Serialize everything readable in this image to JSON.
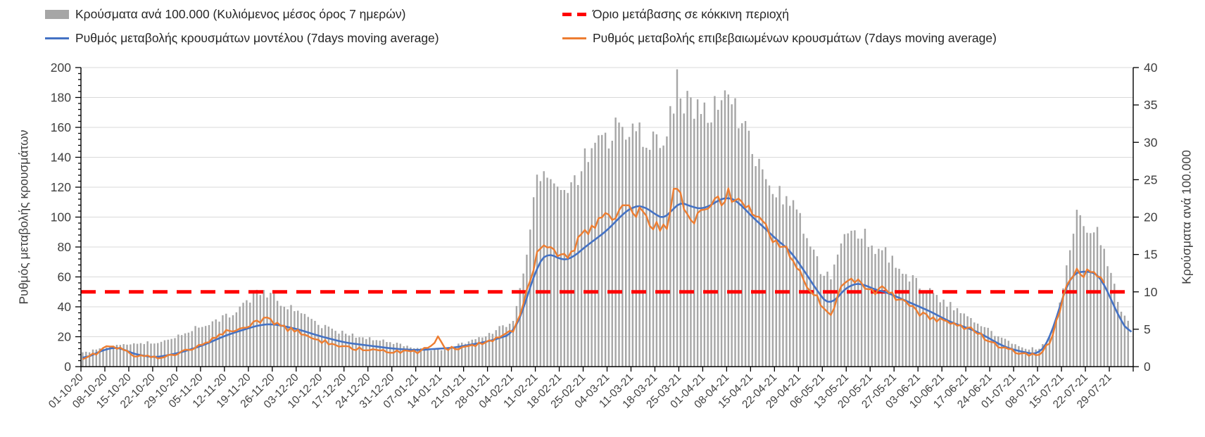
{
  "legend": {
    "items": [
      {
        "label": "Κρούσματα ανά 100.000 (Κυλιόμενος μέσος όρος 7 ημερών)",
        "style": "bar",
        "color": "#a6a6a6"
      },
      {
        "label": "Ρυθμός μεταβολής κρουσμάτων μοντέλου (7days moving average)",
        "style": "line",
        "color": "#4472c4"
      },
      {
        "label": "Όριο μετάβασης σε κόκκινη περιοχή",
        "style": "dash",
        "color": "#ff0000"
      },
      {
        "label": "Ρυθμός μεταβολής επιβεβαιωμένων κρουσμάτων (7days moving average)",
        "style": "line",
        "color": "#ed7d31"
      }
    ]
  },
  "axes": {
    "y_left": {
      "title": "Ρυθμός μεταβολής κρουσμάτων",
      "min": 0,
      "max": 200,
      "tick_step": 20,
      "ticks": [
        0,
        20,
        40,
        60,
        80,
        100,
        120,
        140,
        160,
        180,
        200
      ]
    },
    "y_right": {
      "title": "Κρούσματα ανά 100.000",
      "min": 0,
      "max": 40,
      "tick_step": 5,
      "ticks": [
        0,
        5,
        10,
        15,
        20,
        25,
        30,
        35,
        40
      ]
    },
    "x": {
      "tick_labels": [
        "01-10-20",
        "08-10-20",
        "15-10-20",
        "22-10-20",
        "29-10-20",
        "05-11-20",
        "12-11-20",
        "19-11-20",
        "26-11-20",
        "03-12-20",
        "10-12-20",
        "17-12-20",
        "24-12-20",
        "31-12-20",
        "07-01-21",
        "14-01-21",
        "21-01-21",
        "28-01-21",
        "04-02-21",
        "11-02-21",
        "18-02-21",
        "25-02-21",
        "04-03-21",
        "11-03-21",
        "18-03-21",
        "25-03-21",
        "01-04-21",
        "08-04-21",
        "15-04-21",
        "22-04-21",
        "29-04-21",
        "06-05-21",
        "13-05-21",
        "20-05-21",
        "27-05-21",
        "03-06-21",
        "10-06-21",
        "17-06-21",
        "24-06-21",
        "01-07-21",
        "08-07-21",
        "15-07-21",
        "22-07-21",
        "29-07-21"
      ]
    }
  },
  "colors": {
    "bars": "#a6a6a6",
    "model_line": "#4472c4",
    "confirmed_line": "#ed7d31",
    "threshold_line": "#ff0000",
    "gridline": "#d9d9d9",
    "axis": "#000000",
    "tick_text": "#3f3f3f"
  },
  "chart_data": {
    "type": "bar",
    "subtype": "combo-daily-bars-with-two-lines-and-threshold",
    "x_start_label": "01-10-20",
    "x_end_label": "29-07-21",
    "days_total": 308,
    "series": [
      {
        "role": "bars",
        "name": "Κρούσματα ανά 100.000 (Κυλιόμενος μέσος όρος 7 ημερών)",
        "type": "bar",
        "axis": "right",
        "color": "#a6a6a6",
        "anchors_day_value": [
          [
            0,
            1.8
          ],
          [
            7,
            2.6
          ],
          [
            11,
            2.8
          ],
          [
            14,
            3.0
          ],
          [
            21,
            3.2
          ],
          [
            28,
            4.2
          ],
          [
            35,
            5.4
          ],
          [
            42,
            6.6
          ],
          [
            49,
            9.0
          ],
          [
            52,
            10.0
          ],
          [
            56,
            9.2
          ],
          [
            59,
            8.2
          ],
          [
            63,
            7.2
          ],
          [
            70,
            5.4
          ],
          [
            77,
            4.4
          ],
          [
            84,
            3.6
          ],
          [
            91,
            3.2
          ],
          [
            98,
            2.4
          ],
          [
            105,
            2.2
          ],
          [
            112,
            3.2
          ],
          [
            119,
            4.4
          ],
          [
            126,
            6.0
          ],
          [
            129,
            12.0
          ],
          [
            133,
            24.6
          ],
          [
            136,
            25.4
          ],
          [
            140,
            22.4
          ],
          [
            143,
            23.6
          ],
          [
            147,
            28.0
          ],
          [
            150,
            29.6
          ],
          [
            154,
            31.0
          ],
          [
            158,
            32.0
          ],
          [
            161,
            32.6
          ],
          [
            164,
            30.4
          ],
          [
            168,
            30.0
          ],
          [
            171,
            31.0
          ],
          [
            174,
            38.0
          ],
          [
            176,
            36.0
          ],
          [
            178,
            34.0
          ],
          [
            182,
            33.6
          ],
          [
            185,
            35.0
          ],
          [
            189,
            35.6
          ],
          [
            192,
            33.0
          ],
          [
            196,
            29.0
          ],
          [
            200,
            26.0
          ],
          [
            203,
            23.6
          ],
          [
            207,
            21.6
          ],
          [
            210,
            20.0
          ],
          [
            213,
            16.0
          ],
          [
            216,
            13.0
          ],
          [
            219,
            12.4
          ],
          [
            222,
            17.0
          ],
          [
            225,
            18.4
          ],
          [
            228,
            18.0
          ],
          [
            231,
            16.4
          ],
          [
            235,
            15.2
          ],
          [
            238,
            14.0
          ],
          [
            241,
            12.4
          ],
          [
            245,
            11.0
          ],
          [
            249,
            9.6
          ],
          [
            252,
            8.8
          ],
          [
            256,
            7.6
          ],
          [
            259,
            6.6
          ],
          [
            263,
            5.6
          ],
          [
            266,
            4.6
          ],
          [
            270,
            3.6
          ],
          [
            273,
            2.8
          ],
          [
            277,
            2.4
          ],
          [
            280,
            2.4
          ],
          [
            283,
            4.0
          ],
          [
            285,
            6.0
          ],
          [
            287,
            11.0
          ],
          [
            289,
            15.0
          ],
          [
            291,
            20.0
          ],
          [
            293,
            19.2
          ],
          [
            295,
            18.6
          ],
          [
            297,
            17.6
          ],
          [
            299,
            16.0
          ],
          [
            301,
            12.4
          ],
          [
            303,
            9.0
          ],
          [
            305,
            6.6
          ],
          [
            306,
            6.0
          ]
        ]
      },
      {
        "role": "model",
        "name": "Ρυθμός μεταβολής κρουσμάτων μοντέλου (7days moving average)",
        "type": "line",
        "axis": "left",
        "color": "#4472c4",
        "anchors_day_value": [
          [
            0,
            5
          ],
          [
            7,
            12
          ],
          [
            11,
            13
          ],
          [
            14,
            9
          ],
          [
            21,
            6
          ],
          [
            28,
            9
          ],
          [
            35,
            14
          ],
          [
            42,
            21
          ],
          [
            49,
            26
          ],
          [
            52,
            28
          ],
          [
            56,
            28.5
          ],
          [
            59,
            27
          ],
          [
            63,
            25
          ],
          [
            70,
            20
          ],
          [
            77,
            16
          ],
          [
            84,
            14
          ],
          [
            91,
            12
          ],
          [
            98,
            11
          ],
          [
            104,
            12
          ],
          [
            108,
            12.5
          ],
          [
            112,
            14
          ],
          [
            119,
            17
          ],
          [
            126,
            22
          ],
          [
            129,
            38
          ],
          [
            133,
            68
          ],
          [
            136,
            77
          ],
          [
            140,
            71
          ],
          [
            143,
            72
          ],
          [
            147,
            80
          ],
          [
            150,
            85
          ],
          [
            154,
            92
          ],
          [
            158,
            102
          ],
          [
            161,
            107
          ],
          [
            164,
            108
          ],
          [
            168,
            101
          ],
          [
            171,
            98
          ],
          [
            174,
            111
          ],
          [
            178,
            107
          ],
          [
            182,
            105
          ],
          [
            185,
            110
          ],
          [
            189,
            114
          ],
          [
            192,
            110
          ],
          [
            196,
            100
          ],
          [
            200,
            92
          ],
          [
            203,
            85
          ],
          [
            207,
            78
          ],
          [
            210,
            68
          ],
          [
            213,
            58
          ],
          [
            216,
            47
          ],
          [
            219,
            40
          ],
          [
            222,
            50
          ],
          [
            225,
            55
          ],
          [
            228,
            56
          ],
          [
            231,
            52
          ],
          [
            235,
            50
          ],
          [
            238,
            47
          ],
          [
            241,
            44
          ],
          [
            245,
            40
          ],
          [
            249,
            36
          ],
          [
            252,
            32
          ],
          [
            256,
            28
          ],
          [
            259,
            26
          ],
          [
            263,
            22
          ],
          [
            266,
            18
          ],
          [
            270,
            13
          ],
          [
            273,
            11
          ],
          [
            277,
            9
          ],
          [
            280,
            8
          ],
          [
            283,
            18
          ],
          [
            285,
            32
          ],
          [
            287,
            48
          ],
          [
            289,
            60
          ],
          [
            291,
            64
          ],
          [
            294,
            63
          ],
          [
            296,
            64
          ],
          [
            298,
            60
          ],
          [
            301,
            45
          ],
          [
            304,
            30
          ],
          [
            307,
            20
          ]
        ]
      },
      {
        "role": "confirmed",
        "name": "Ρυθμός μεταβολής επιβεβαιωμένων κρουσμάτων (7days moving average)",
        "type": "line",
        "axis": "left",
        "color": "#ed7d31",
        "anchors_day_value": [
          [
            0,
            4
          ],
          [
            7,
            13
          ],
          [
            11,
            13
          ],
          [
            14,
            8
          ],
          [
            21,
            6
          ],
          [
            28,
            9
          ],
          [
            35,
            15
          ],
          [
            42,
            23
          ],
          [
            49,
            28
          ],
          [
            53,
            32
          ],
          [
            56,
            30
          ],
          [
            59,
            26
          ],
          [
            63,
            23
          ],
          [
            70,
            17
          ],
          [
            77,
            13
          ],
          [
            84,
            11
          ],
          [
            91,
            10
          ],
          [
            98,
            10
          ],
          [
            102,
            13
          ],
          [
            104,
            20
          ],
          [
            106,
            12
          ],
          [
            112,
            13
          ],
          [
            119,
            17
          ],
          [
            126,
            24
          ],
          [
            129,
            42
          ],
          [
            133,
            75
          ],
          [
            135,
            83
          ],
          [
            140,
            72
          ],
          [
            143,
            78
          ],
          [
            147,
            88
          ],
          [
            150,
            95
          ],
          [
            154,
            100
          ],
          [
            158,
            104
          ],
          [
            161,
            106
          ],
          [
            164,
            101
          ],
          [
            168,
            94
          ],
          [
            171,
            92
          ],
          [
            173,
            122
          ],
          [
            175,
            112
          ],
          [
            178,
            98
          ],
          [
            182,
            104
          ],
          [
            185,
            108
          ],
          [
            189,
            115
          ],
          [
            192,
            112
          ],
          [
            196,
            103
          ],
          [
            200,
            95
          ],
          [
            203,
            83
          ],
          [
            207,
            75
          ],
          [
            210,
            62
          ],
          [
            213,
            52
          ],
          [
            216,
            42
          ],
          [
            219,
            36
          ],
          [
            222,
            52
          ],
          [
            225,
            60
          ],
          [
            228,
            55
          ],
          [
            231,
            50
          ],
          [
            235,
            52
          ],
          [
            238,
            45
          ],
          [
            241,
            42
          ],
          [
            245,
            36
          ],
          [
            249,
            32
          ],
          [
            252,
            30
          ],
          [
            256,
            27
          ],
          [
            259,
            26
          ],
          [
            263,
            21
          ],
          [
            266,
            16
          ],
          [
            270,
            12
          ],
          [
            273,
            10
          ],
          [
            277,
            8
          ],
          [
            280,
            7
          ],
          [
            283,
            16
          ],
          [
            285,
            30
          ],
          [
            287,
            46
          ],
          [
            289,
            58
          ],
          [
            291,
            65
          ],
          [
            293,
            62
          ],
          [
            296,
            66
          ],
          [
            297,
            60
          ],
          [
            299,
            58
          ]
        ]
      },
      {
        "role": "threshold",
        "name": "Όριο μετάβασης σε κόκκινη περιοχή",
        "type": "threshold",
        "axis": "left",
        "color": "#ff0000",
        "value": 50,
        "value_right_axis": 10
      }
    ]
  }
}
